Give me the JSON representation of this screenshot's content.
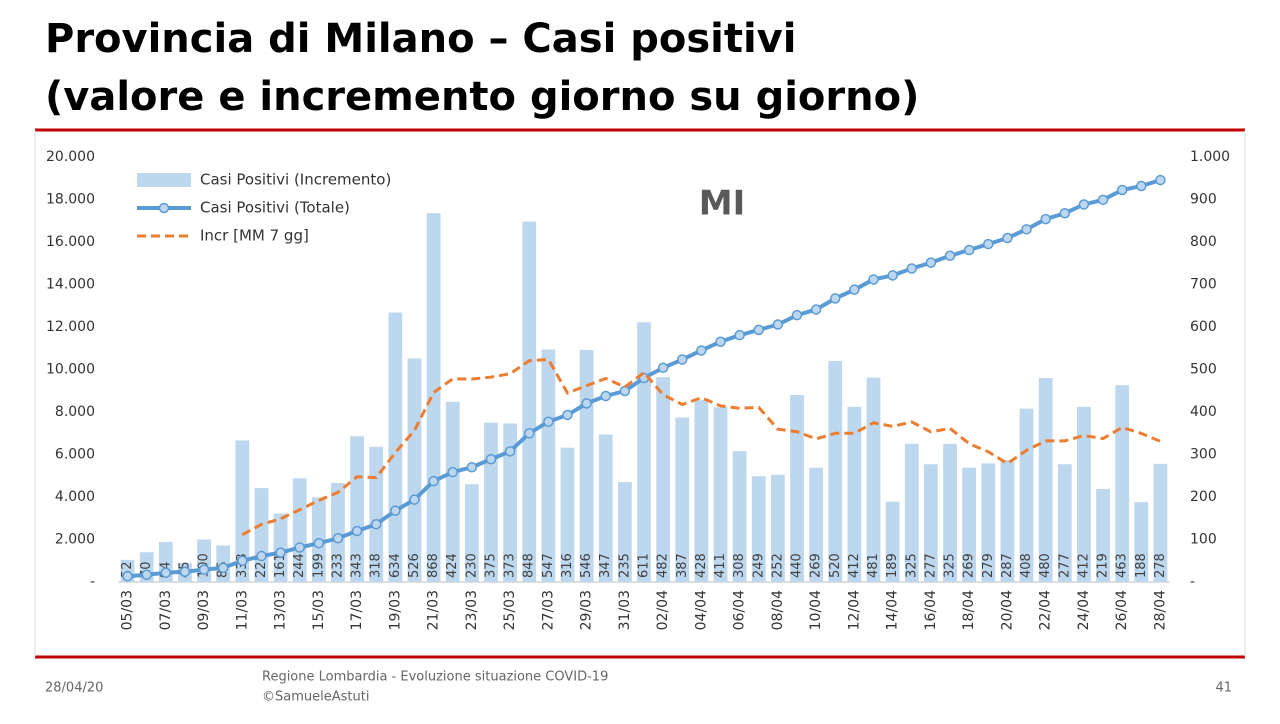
{
  "slide": {
    "title_line1": "Provincia di Milano – Casi positivi",
    "title_line2": "(valore e incremento giorno su giorno)",
    "date": "28/04/20",
    "footer_line1": "Regione Lombardia - Evoluzione situazione COVID-19",
    "footer_line2": "©SamueleAstuti",
    "page": "41"
  },
  "chart_data": {
    "type": "combo",
    "annotation": "MI",
    "legend": "upper left",
    "grid": false,
    "categories": [
      "05/03",
      null,
      "07/03",
      null,
      "09/03",
      null,
      "11/03",
      null,
      "13/03",
      null,
      "15/03",
      null,
      "17/03",
      null,
      "19/03",
      null,
      "21/03",
      null,
      "23/03",
      null,
      "25/03",
      null,
      "27/03",
      null,
      "29/03",
      null,
      "31/03",
      null,
      "02/04",
      null,
      "04/04",
      null,
      "06/04",
      null,
      "08/04",
      null,
      "10/04",
      null,
      "12/04",
      null,
      "14/04",
      null,
      "16/04",
      null,
      "18/04",
      null,
      "20/04",
      null,
      "22/04",
      null,
      "24/04",
      null,
      "26/04",
      null,
      "28/04"
    ],
    "ylim": [
      0,
      20000
    ],
    "yticks": [
      {
        "value": 0,
        "label": "-"
      },
      {
        "value": 2000,
        "label": "2.000"
      },
      {
        "value": 4000,
        "label": "4.000"
      },
      {
        "value": 6000,
        "label": "6.000"
      },
      {
        "value": 8000,
        "label": "8.000"
      },
      {
        "value": 10000,
        "label": "10.000"
      },
      {
        "value": 12000,
        "label": "12.000"
      },
      {
        "value": 14000,
        "label": "14.000"
      },
      {
        "value": 16000,
        "label": "16.000"
      },
      {
        "value": 18000,
        "label": "18.000"
      },
      {
        "value": 20000,
        "label": "20.000"
      }
    ],
    "y2lim": [
      0,
      1000
    ],
    "y2ticks": [
      {
        "value": 0,
        "label": "-"
      },
      100,
      200,
      300,
      400,
      500,
      600,
      700,
      800,
      900,
      {
        "value": 1000,
        "label": "1.000"
      }
    ],
    "series": [
      {
        "name": "Casi Positivi (Incremento)",
        "type": "bar",
        "axis": "y2",
        "color": "#bdd7ee",
        "values": [
          52,
          70,
          94,
          45,
          100,
          86,
          333,
          221,
          161,
          244,
          199,
          233,
          343,
          318,
          634,
          526,
          868,
          424,
          230,
          375,
          373,
          848,
          547,
          316,
          546,
          347,
          235,
          611,
          482,
          387,
          428,
          411,
          308,
          249,
          252,
          440,
          269,
          520,
          412,
          481,
          189,
          325,
          277,
          325,
          269,
          279,
          287,
          408,
          480,
          277,
          412,
          219,
          463,
          188,
          278
        ]
      },
      {
        "name": "Casi Positivi (Totale)",
        "type": "line",
        "markers": true,
        "color": "#5b9bd5",
        "values": [
          272,
          342,
          436,
          481,
          581,
          667,
          1000,
          1221,
          1382,
          1626,
          1825,
          2058,
          2401,
          2719,
          3353,
          3879,
          4747,
          5171,
          5401,
          5776,
          6149,
          6997,
          7544,
          7860,
          8406,
          8753,
          8988,
          9599,
          10081,
          10468,
          10896,
          11307,
          11615,
          11864,
          12116,
          12556,
          12825,
          13345,
          13757,
          14238,
          14427,
          14752,
          15029,
          15354,
          15623,
          15902,
          16189,
          16597,
          17077,
          17354,
          17766,
          17985,
          18448,
          18636,
          18914
        ]
      },
      {
        "name": "Incr [MM 7 gg]",
        "type": "line",
        "dashed": true,
        "axis": "y2",
        "color": "#ed7d31",
        "values": [
          null,
          null,
          null,
          null,
          null,
          null,
          111.4,
          135.6,
          148.6,
          170.0,
          192.0,
          211.0,
          247.7,
          245.6,
          304.6,
          356.7,
          445.9,
          478.0,
          477.6,
          482.1,
          490.0,
          520.6,
          523.6,
          444.7,
          462.1,
          478.9,
          458.9,
          492.9,
          440.6,
          417.7,
          433.7,
          414.4,
          408.9,
          410.9,
          359.6,
          353.6,
          336.7,
          349.9,
          350.0,
          374.7,
          366.1,
          376.6,
          353.3,
          361.3,
          325.4,
          306.4,
          278.7,
          310.0,
          332.1,
          332.1,
          344.6,
          337.4,
          363.7,
          349.6,
          331.0
        ]
      }
    ]
  }
}
